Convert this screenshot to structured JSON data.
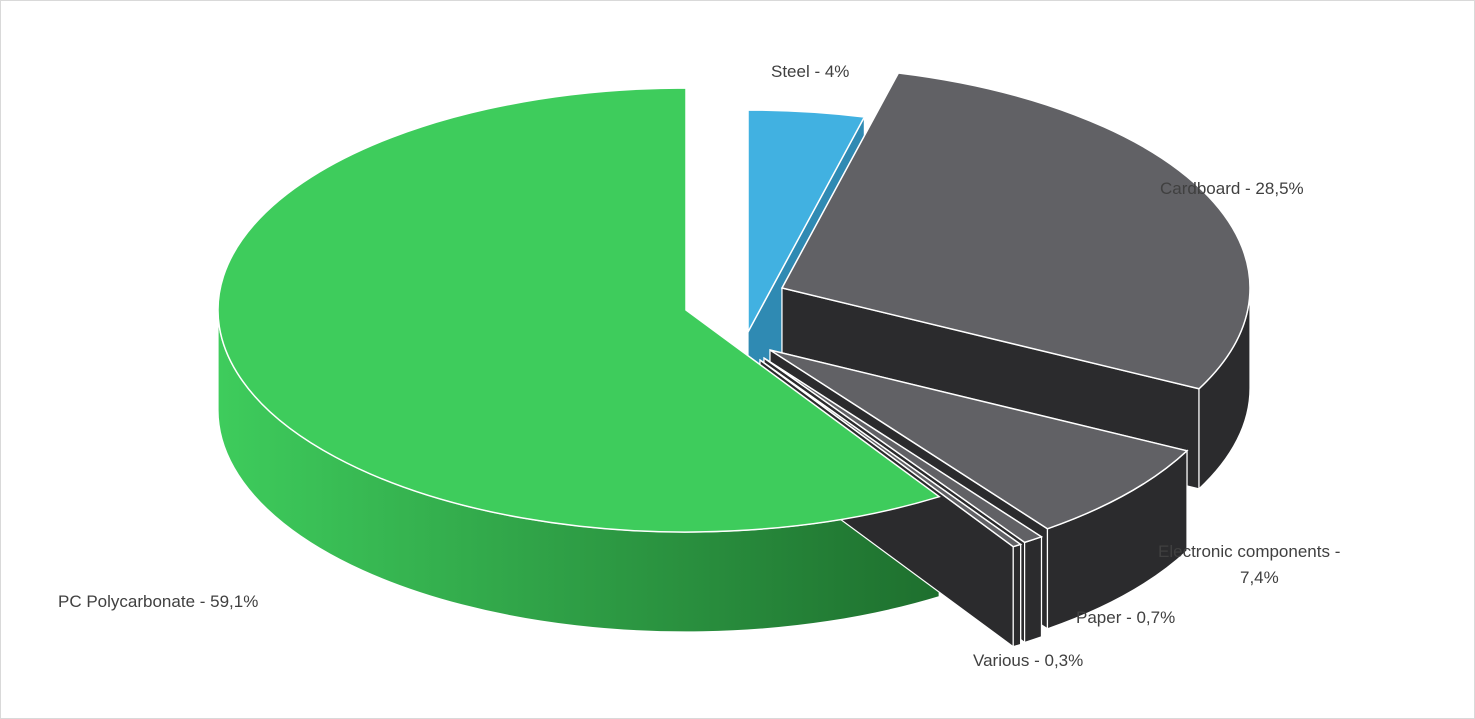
{
  "chart_data": {
    "type": "pie",
    "style": "3d-exploded",
    "slices": [
      {
        "name": "Steel",
        "value": 4.0,
        "label": "Steel - 4%",
        "color": "#41b1e1",
        "side_color": "#2f8ab3"
      },
      {
        "name": "Cardboard",
        "value": 28.5,
        "label": "Cardboard - 28,5%",
        "color": "#616165",
        "side_color": "#2b2b2d"
      },
      {
        "name": "Electronic components",
        "value": 7.4,
        "label_lines": [
          "Electronic components -",
          "7,4%"
        ],
        "color": "#616165",
        "side_color": "#2b2b2d"
      },
      {
        "name": "Paper",
        "value": 0.7,
        "label": "Paper - 0,7%",
        "color": "#616165",
        "side_color": "#2b2b2d"
      },
      {
        "name": "Various",
        "value": 0.3,
        "label": "Various - 0,3%",
        "color": "#616165",
        "side_color": "#2b2b2d"
      },
      {
        "name": "PC Polycarbonate",
        "value": 59.1,
        "label": "PC Polycarbonate - 59,1%",
        "color": "#3ecc5c",
        "side_color": "#1e6f2e"
      }
    ],
    "legend": "none"
  }
}
